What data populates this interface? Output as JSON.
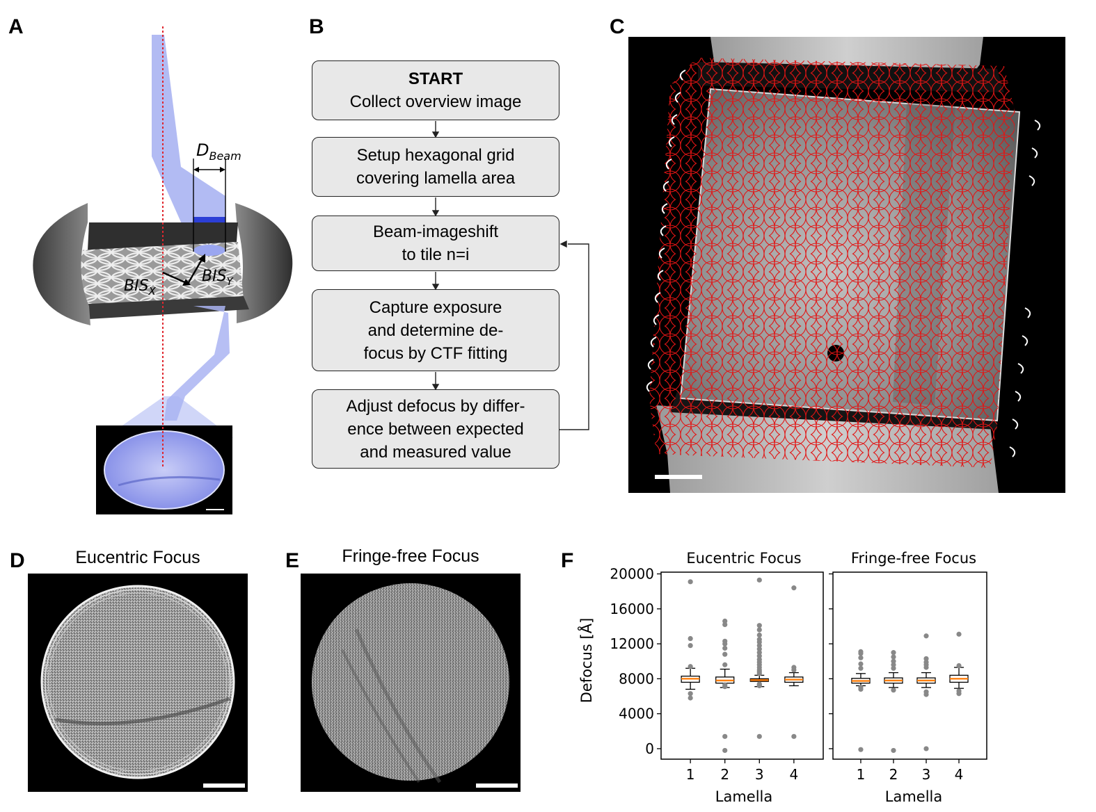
{
  "panels": {
    "a": "A",
    "b": "B",
    "c": "C",
    "d": "D",
    "e": "E",
    "f": "F"
  },
  "panel_a": {
    "beam_label_main": "D",
    "beam_label_sub": "Beam",
    "bis_x_main": "BIS",
    "bis_x_sub": "X",
    "bis_y_main": "BIS",
    "bis_y_sub": "Y",
    "colors": {
      "beam": "#aab4f2",
      "beam_dark": "#2c3fd6",
      "optical_axis": "#e0262e"
    }
  },
  "flowchart": {
    "box1_title": "START",
    "box1_l1": "Collect overview image",
    "box2_l1": "Setup hexagonal grid",
    "box2_l2": "covering lamella area",
    "box3_l1": "Beam-imageshift",
    "box3_l2": "to tile n=i",
    "box4_l1": "Capture exposure",
    "box4_l2": "and determine de-",
    "box4_l3": "focus by CTF fitting",
    "box5_l1": "Adjust defocus by differ-",
    "box5_l2": "ence between expected",
    "box5_l3": "and measured value"
  },
  "panel_d": {
    "title": "Eucentric Focus"
  },
  "panel_e": {
    "title": "Fringe-free Focus"
  },
  "chart_data": [
    {
      "type": "box",
      "title": "Eucentric Focus",
      "xlabel": "Lamella",
      "ylabel": "Defocus [Å]",
      "categories": [
        "1",
        "2",
        "3",
        "4"
      ],
      "ylim": [
        -1200,
        20200
      ],
      "yticks": [
        0,
        4000,
        8000,
        12000,
        16000,
        20000
      ],
      "ytick_labels": [
        "0",
        "4000",
        "8000",
        "12000",
        "16000",
        "20000"
      ],
      "boxes": [
        {
          "lamella": 1,
          "whisker_low": 6800,
          "q1": 7600,
          "median": 8000,
          "q3": 8300,
          "whisker_high": 9200,
          "outliers": [
            19100,
            12600,
            11800,
            9400,
            5800,
            6300
          ]
        },
        {
          "lamella": 2,
          "whisker_low": 7000,
          "q1": 7500,
          "median": 7800,
          "q3": 8200,
          "whisker_high": 9100,
          "outliers": [
            14600,
            14200,
            12300,
            12000,
            11500,
            10800,
            9600,
            7300,
            7100,
            1400,
            -200
          ]
        },
        {
          "lamella": 3,
          "whisker_low": 7100,
          "q1": 7700,
          "median": 7850,
          "q3": 8000,
          "whisker_high": 8400,
          "outliers": [
            19300,
            14100,
            13600,
            13000,
            12500,
            12200,
            11800,
            11400,
            11000,
            10600,
            10200,
            9900,
            9600,
            9300,
            9000,
            8800,
            8600,
            7400,
            7300,
            7200,
            1400
          ]
        },
        {
          "lamella": 4,
          "whisker_low": 7200,
          "q1": 7600,
          "median": 7900,
          "q3": 8200,
          "whisker_high": 8700,
          "outliers": [
            18400,
            9300,
            9000,
            1400
          ]
        }
      ],
      "colors": {
        "median": "#ff7f0e",
        "outlier": "#888888"
      }
    },
    {
      "type": "box",
      "title": "Fringe-free Focus",
      "xlabel": "Lamella",
      "categories": [
        "1",
        "2",
        "3",
        "4"
      ],
      "ylim": [
        -1200,
        20200
      ],
      "boxes": [
        {
          "lamella": 1,
          "whisker_low": 7200,
          "q1": 7500,
          "median": 7750,
          "q3": 8050,
          "whisker_high": 8600,
          "outliers": [
            11100,
            10900,
            10400,
            9700,
            9200,
            7000,
            6800,
            -100
          ]
        },
        {
          "lamella": 2,
          "whisker_low": 7000,
          "q1": 7500,
          "median": 7800,
          "q3": 8100,
          "whisker_high": 8700,
          "outliers": [
            11000,
            10500,
            10000,
            9600,
            9200,
            6700,
            -200
          ]
        },
        {
          "lamella": 3,
          "whisker_low": 7000,
          "q1": 7500,
          "median": 7800,
          "q3": 8100,
          "whisker_high": 8700,
          "outliers": [
            12900,
            10300,
            9900,
            9600,
            9300,
            6500,
            6200,
            0
          ]
        },
        {
          "lamella": 4,
          "whisker_low": 6900,
          "q1": 7600,
          "median": 8000,
          "q3": 8400,
          "whisker_high": 9300,
          "outliers": [
            13100,
            9500,
            6600,
            6300
          ]
        }
      ],
      "colors": {
        "median": "#ff7f0e",
        "outlier": "#888888"
      }
    }
  ]
}
